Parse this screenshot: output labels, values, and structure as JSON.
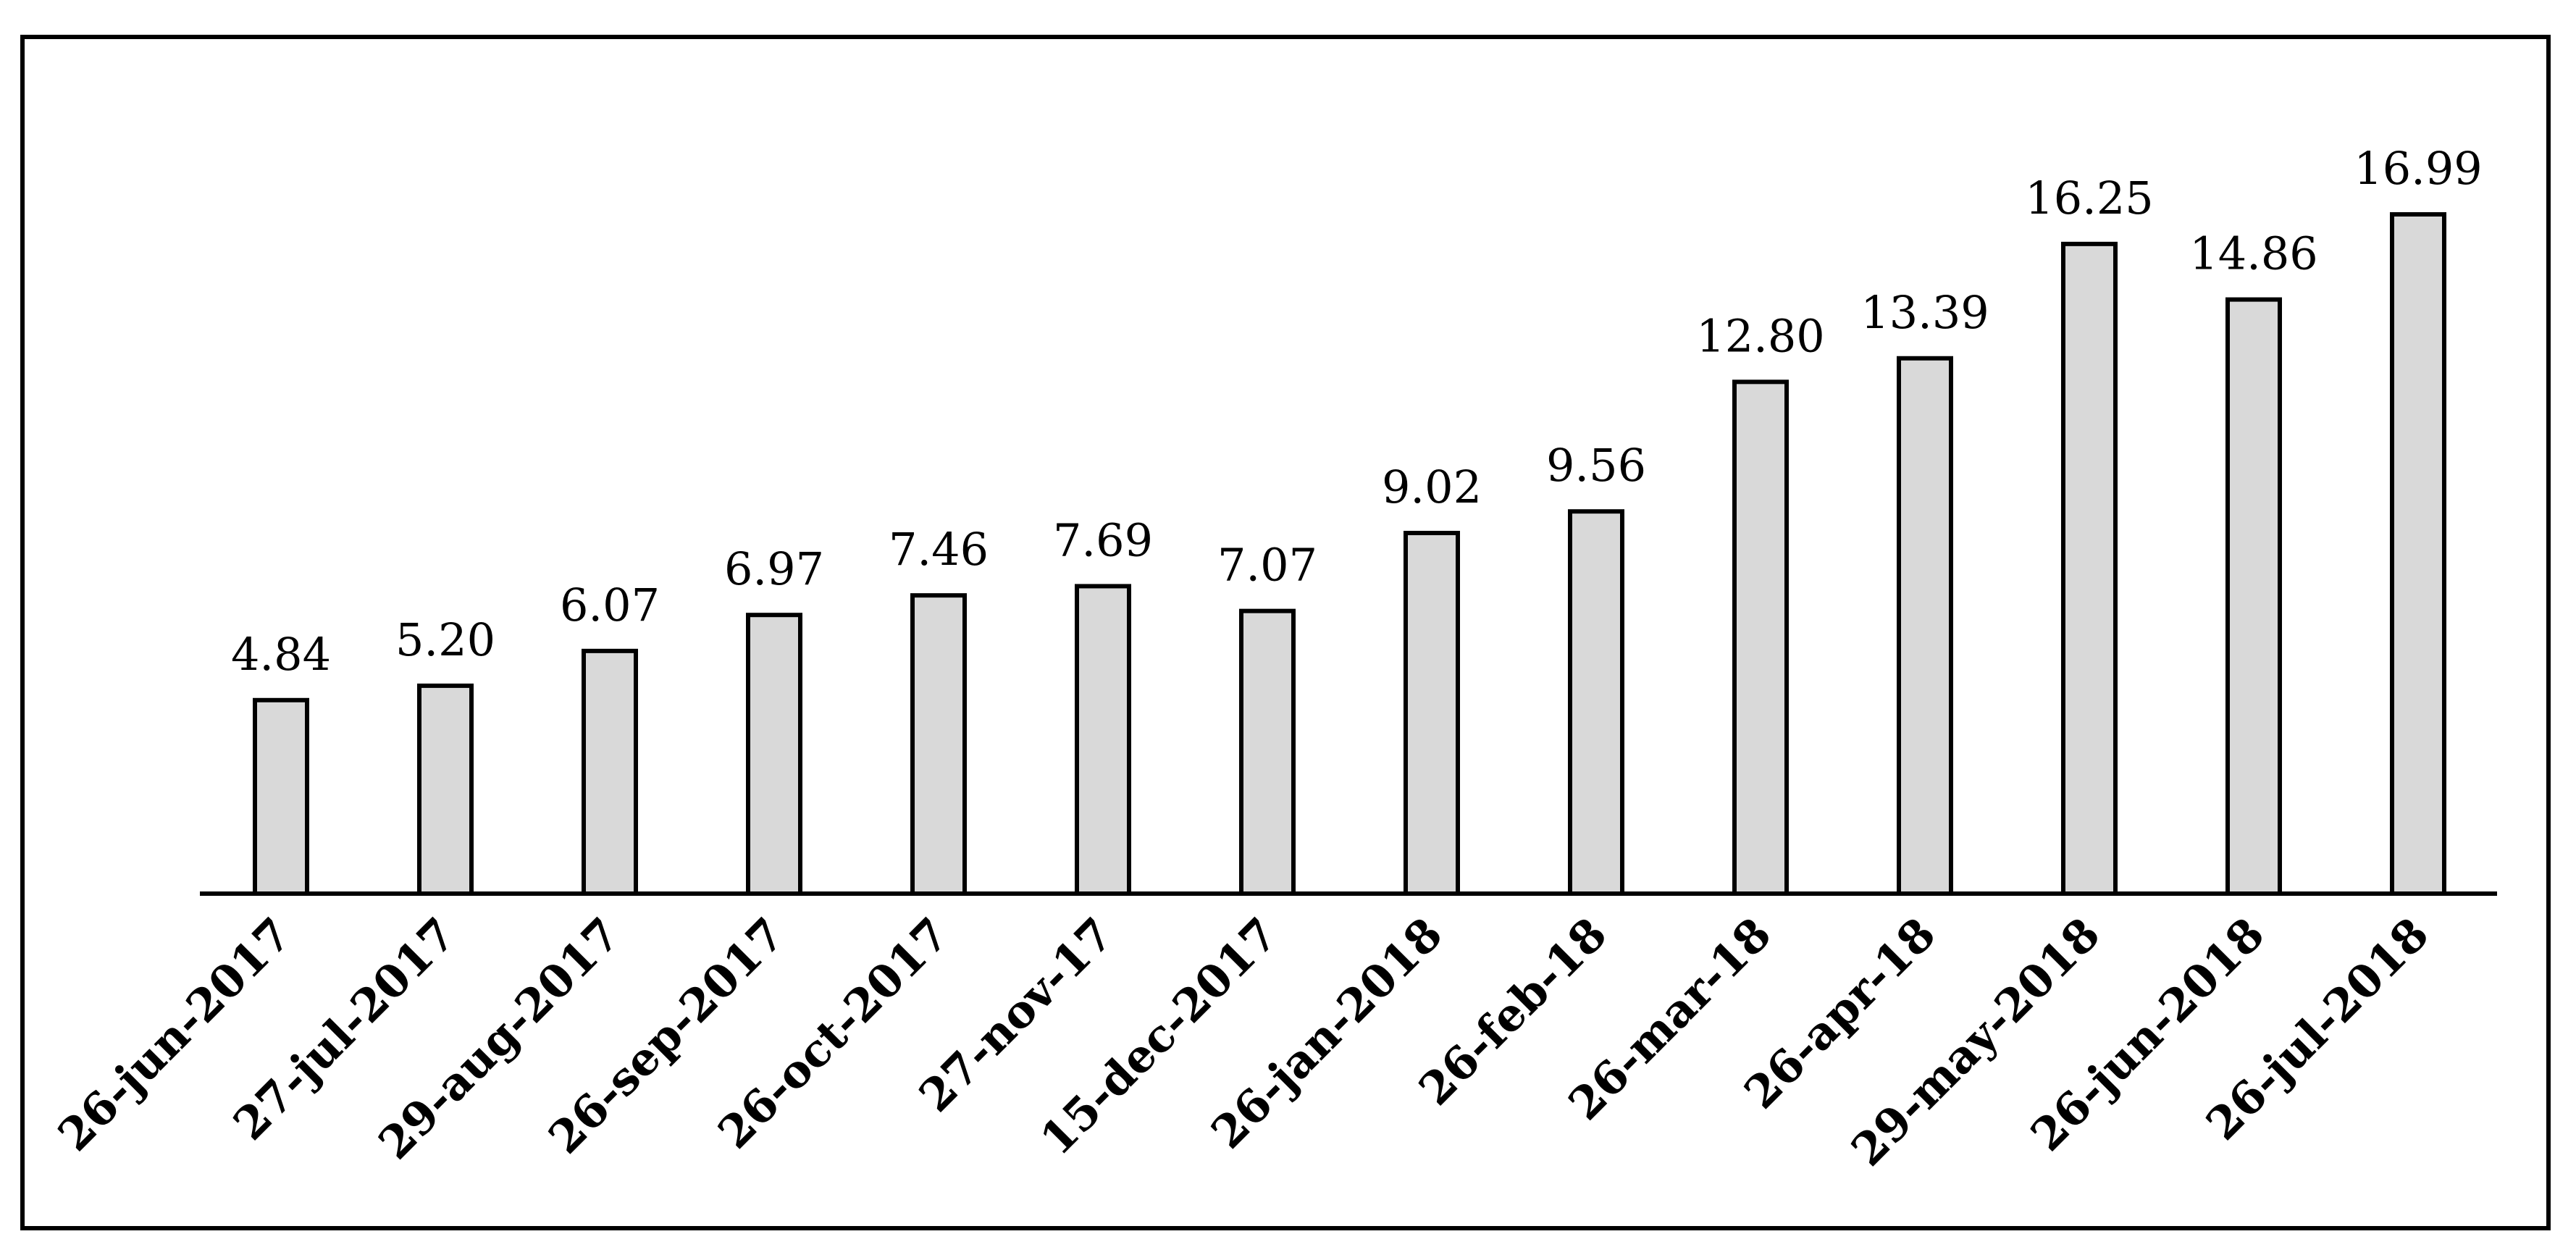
{
  "chart_data": {
    "type": "bar",
    "categories": [
      "26-jun-2017",
      "27-jul-2017",
      "29-aug-2017",
      "26-sep-2017",
      "26-oct-2017",
      "27-nov-17",
      "15-dec-2017",
      "26-jan-2018",
      "26-feb-18",
      "26-mar-18",
      "26-apr-18",
      "29-may-2018",
      "26-jun-2018",
      "26-jul-2018"
    ],
    "values": [
      4.84,
      5.2,
      6.07,
      6.97,
      7.46,
      7.69,
      7.07,
      9.02,
      9.56,
      12.8,
      13.39,
      16.25,
      14.86,
      16.99
    ],
    "data_labels": [
      "4.84",
      "5.20",
      "6.07",
      "6.97",
      "7.46",
      "7.69",
      "7.07",
      "9.02",
      "9.56",
      "12.80",
      "13.39",
      "16.25",
      "14.86",
      "16.99"
    ],
    "ylim": [
      0,
      17
    ],
    "grid": false,
    "legend": "none",
    "colors": {
      "bar_fill": "#d9d9d9",
      "bar_stroke": "#000000",
      "axis": "#000000"
    }
  }
}
